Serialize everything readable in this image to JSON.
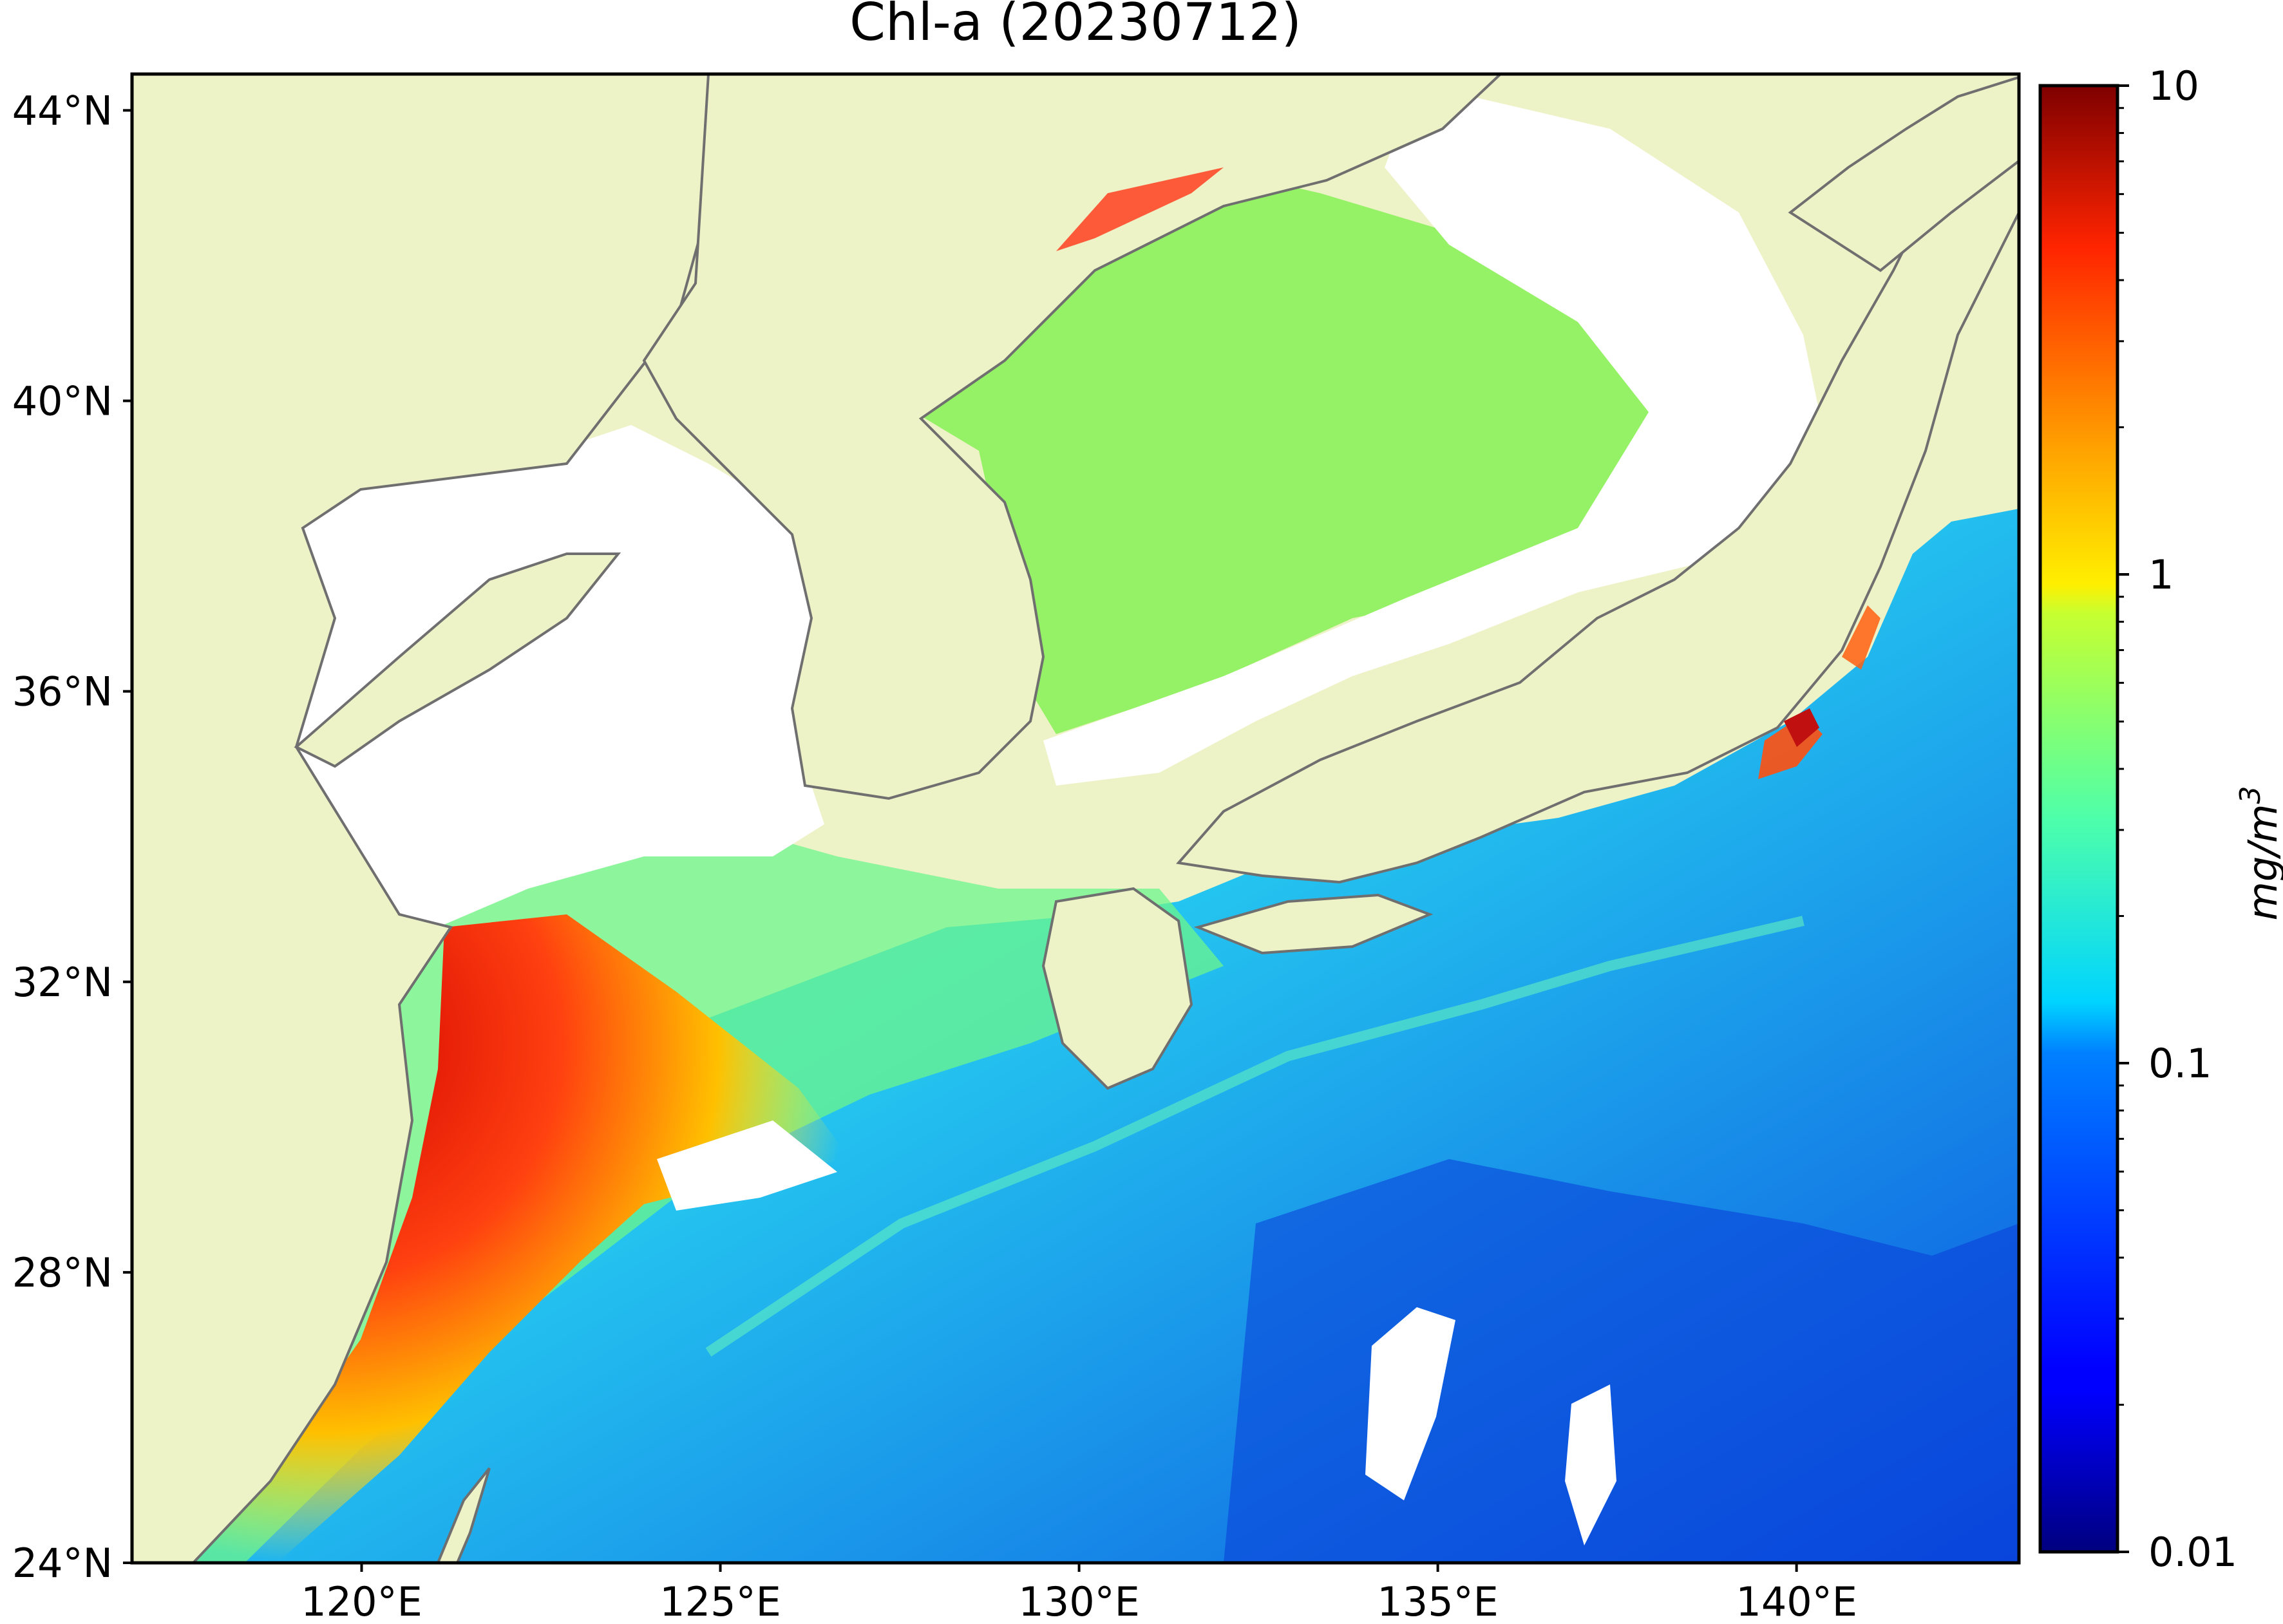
{
  "title": "Chl-a (20230712)",
  "map": {
    "land_color": "#eef2c7",
    "coast_color": "#6f6f6f",
    "cloud_color": "#ffffff",
    "lon_range": [
      116.8,
      143.1
    ],
    "lat_range": [
      24.0,
      44.5
    ],
    "lon_ticks": [
      {
        "value": 120,
        "label": "120°E"
      },
      {
        "value": 125,
        "label": "125°E"
      },
      {
        "value": 130,
        "label": "130°E"
      },
      {
        "value": 135,
        "label": "135°E"
      },
      {
        "value": 140,
        "label": "140°E"
      }
    ],
    "lat_ticks": [
      {
        "value": 44,
        "label": "44°N"
      },
      {
        "value": 40,
        "label": "40°N"
      },
      {
        "value": 36,
        "label": "36°N"
      },
      {
        "value": 32,
        "label": "32°N"
      },
      {
        "value": 28,
        "label": "28°N"
      },
      {
        "value": 24,
        "label": "24°N"
      }
    ]
  },
  "colorbar": {
    "label": "mg/m",
    "label_sup": "3",
    "scale": "log",
    "range": [
      0.01,
      10
    ],
    "colormap": "jet",
    "ticks": [
      {
        "value": 10,
        "label": "10"
      },
      {
        "value": 1,
        "label": "1"
      },
      {
        "value": 0.1,
        "label": "0.1"
      },
      {
        "value": 0.01,
        "label": "0.01"
      }
    ]
  }
}
